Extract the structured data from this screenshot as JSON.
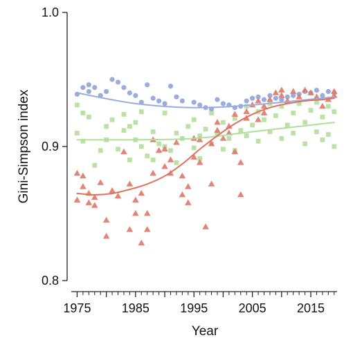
{
  "chart_data": {
    "type": "scatter",
    "title": "",
    "xlabel": "Year",
    "ylabel": "Gini-Simpson index",
    "xlim": [
      1974,
      2019.5
    ],
    "ylim": [
      0.8,
      1.0
    ],
    "x_ticks": [
      1975,
      1985,
      1995,
      2005,
      2015
    ],
    "x_tick_labels": [
      "1975",
      "1985",
      "1995",
      "2005",
      "2015"
    ],
    "y_ticks": [
      0.8,
      0.9,
      1.0
    ],
    "y_tick_labels": [
      "0.8",
      "0.9",
      "1.0"
    ],
    "grid": false,
    "legend": "none",
    "series": [
      {
        "marker": "circle",
        "color": "#8fa3dc",
        "trend_color": "#9aacdf",
        "points": [
          [
            1975,
            0.939
          ],
          [
            1976,
            0.944
          ],
          [
            1977,
            0.941
          ],
          [
            1977,
            0.946
          ],
          [
            1978,
            0.944
          ],
          [
            1979,
            0.938
          ],
          [
            1980,
            0.941
          ],
          [
            1981,
            0.95
          ],
          [
            1982,
            0.948
          ],
          [
            1983,
            0.944
          ],
          [
            1984,
            0.94
          ],
          [
            1985,
            0.938
          ],
          [
            1986,
            0.933
          ],
          [
            1987,
            0.946
          ],
          [
            1988,
            0.936
          ],
          [
            1989,
            0.934
          ],
          [
            1990,
            0.932
          ],
          [
            1991,
            0.945
          ],
          [
            1992,
            0.937
          ],
          [
            1993,
            0.934
          ],
          [
            1995,
            0.933
          ],
          [
            1996,
            0.931
          ],
          [
            1997,
            0.929
          ],
          [
            1998,
            0.928
          ],
          [
            1999,
            0.935
          ],
          [
            2000,
            0.932
          ],
          [
            2001,
            0.931
          ],
          [
            2002,
            0.929
          ],
          [
            2003,
            0.93
          ],
          [
            2004,
            0.934
          ],
          [
            2005,
            0.936
          ],
          [
            2006,
            0.937
          ],
          [
            2007,
            0.935
          ],
          [
            2008,
            0.938
          ],
          [
            2009,
            0.936
          ],
          [
            2010,
            0.935
          ],
          [
            2011,
            0.937
          ],
          [
            2012,
            0.938
          ],
          [
            2013,
            0.939
          ],
          [
            2014,
            0.941
          ],
          [
            2015,
            0.94
          ],
          [
            2016,
            0.942
          ],
          [
            2017,
            0.938
          ],
          [
            2018,
            0.941
          ],
          [
            2019,
            0.94
          ]
        ],
        "trend": [
          [
            1975,
            0.94
          ],
          [
            1985,
            0.932
          ],
          [
            1995,
            0.929
          ],
          [
            2005,
            0.931
          ],
          [
            2019,
            0.937
          ]
        ]
      },
      {
        "marker": "square",
        "color": "#b7e0a0",
        "trend_color": "#aee09a",
        "points": [
          [
            1975,
            0.931
          ],
          [
            1975,
            0.91
          ],
          [
            1976,
            0.925
          ],
          [
            1976,
            0.904
          ],
          [
            1977,
            0.922
          ],
          [
            1978,
            0.886
          ],
          [
            1979,
            0.897
          ],
          [
            1980,
            0.905
          ],
          [
            1980,
            0.915
          ],
          [
            1981,
            0.92
          ],
          [
            1982,
            0.898
          ],
          [
            1983,
            0.912
          ],
          [
            1983,
            0.924
          ],
          [
            1984,
            0.915
          ],
          [
            1984,
            0.89
          ],
          [
            1985,
            0.905
          ],
          [
            1985,
            0.918
          ],
          [
            1986,
            0.9
          ],
          [
            1986,
            0.926
          ],
          [
            1987,
            0.893
          ],
          [
            1988,
            0.89
          ],
          [
            1988,
            0.911
          ],
          [
            1989,
            0.902
          ],
          [
            1990,
            0.9
          ],
          [
            1990,
            0.925
          ],
          [
            1991,
            0.897
          ],
          [
            1992,
            0.91
          ],
          [
            1992,
            0.888
          ],
          [
            1993,
            0.906
          ],
          [
            1994,
            0.915
          ],
          [
            1995,
            0.899
          ],
          [
            1995,
            0.92
          ],
          [
            1996,
            0.908
          ],
          [
            1996,
            0.891
          ],
          [
            1997,
            0.913
          ],
          [
            1998,
            0.902
          ],
          [
            1998,
            0.925
          ],
          [
            1999,
            0.91
          ],
          [
            2000,
            0.898
          ],
          [
            2000,
            0.918
          ],
          [
            2001,
            0.906
          ],
          [
            2002,
            0.921
          ],
          [
            2002,
            0.897
          ],
          [
            2003,
            0.912
          ],
          [
            2004,
            0.908
          ],
          [
            2004,
            0.93
          ],
          [
            2005,
            0.916
          ],
          [
            2006,
            0.926
          ],
          [
            2006,
            0.904
          ],
          [
            2007,
            0.92
          ],
          [
            2008,
            0.911
          ],
          [
            2008,
            0.932
          ],
          [
            2009,
            0.923
          ],
          [
            2010,
            0.906
          ],
          [
            2010,
            0.93
          ],
          [
            2011,
            0.916
          ],
          [
            2012,
            0.925
          ],
          [
            2012,
            0.91
          ],
          [
            2013,
            0.932
          ],
          [
            2014,
            0.918
          ],
          [
            2014,
            0.902
          ],
          [
            2015,
            0.927
          ],
          [
            2016,
            0.911
          ],
          [
            2016,
            0.933
          ],
          [
            2017,
            0.905
          ],
          [
            2017,
            0.922
          ],
          [
            2018,
            0.93
          ],
          [
            2018,
            0.909
          ],
          [
            2019,
            0.926
          ],
          [
            2019,
            0.9
          ]
        ],
        "trend": [
          [
            1975,
            0.905
          ],
          [
            1985,
            0.905
          ],
          [
            1995,
            0.906
          ],
          [
            2005,
            0.911
          ],
          [
            2019,
            0.918
          ]
        ]
      },
      {
        "marker": "triangle",
        "color": "#e07a6a",
        "trend_color": "#e2705d",
        "points": [
          [
            1975,
            0.88
          ],
          [
            1975,
            0.86
          ],
          [
            1976,
            0.878
          ],
          [
            1976,
            0.87
          ],
          [
            1977,
            0.858
          ],
          [
            1977,
            0.865
          ],
          [
            1978,
            0.856
          ],
          [
            1978,
            0.862
          ],
          [
            1979,
            0.873
          ],
          [
            1980,
            0.833
          ],
          [
            1980,
            0.845
          ],
          [
            1981,
            0.867
          ],
          [
            1982,
            0.863
          ],
          [
            1983,
            0.896
          ],
          [
            1984,
            0.838
          ],
          [
            1984,
            0.872
          ],
          [
            1985,
            0.86
          ],
          [
            1985,
            0.85
          ],
          [
            1986,
            0.828
          ],
          [
            1986,
            0.865
          ],
          [
            1987,
            0.838
          ],
          [
            1987,
            0.85
          ],
          [
            1988,
            0.905
          ],
          [
            1988,
            0.88
          ],
          [
            1989,
            0.897
          ],
          [
            1990,
            0.898
          ],
          [
            1990,
            0.885
          ],
          [
            1991,
            0.89
          ],
          [
            1991,
            0.88
          ],
          [
            1992,
            0.903
          ],
          [
            1993,
            0.864
          ],
          [
            1993,
            0.878
          ],
          [
            1994,
            0.87
          ],
          [
            1994,
            0.858
          ],
          [
            1995,
            0.906
          ],
          [
            1995,
            0.892
          ],
          [
            1996,
            0.888
          ],
          [
            1996,
            0.905
          ],
          [
            1997,
            0.84
          ],
          [
            1998,
            0.872
          ],
          [
            1998,
            0.902
          ],
          [
            1999,
            0.912
          ],
          [
            1999,
            0.918
          ],
          [
            2000,
            0.906
          ],
          [
            2001,
            0.915
          ],
          [
            2001,
            0.91
          ],
          [
            2002,
            0.924
          ],
          [
            2002,
            0.896
          ],
          [
            2003,
            0.888
          ],
          [
            2003,
            0.864
          ],
          [
            2004,
            0.921
          ],
          [
            2004,
            0.926
          ],
          [
            2005,
            0.931
          ],
          [
            2006,
            0.92
          ],
          [
            2006,
            0.934
          ],
          [
            2007,
            0.93
          ],
          [
            2007,
            0.925
          ],
          [
            2008,
            0.935
          ],
          [
            2009,
            0.94
          ],
          [
            2010,
            0.942
          ],
          [
            2010,
            0.938
          ],
          [
            2011,
            0.934
          ],
          [
            2012,
            0.941
          ],
          [
            2013,
            0.937
          ],
          [
            2014,
            0.942
          ],
          [
            2015,
            0.94
          ],
          [
            2016,
            0.937
          ],
          [
            2017,
            0.93
          ],
          [
            2018,
            0.935
          ],
          [
            2019,
            0.941
          ],
          [
            2019,
            0.938
          ]
        ],
        "trend": [
          [
            1975,
            0.865
          ],
          [
            1978,
            0.864
          ],
          [
            1981,
            0.865
          ],
          [
            1984,
            0.868
          ],
          [
            1987,
            0.872
          ],
          [
            1990,
            0.878
          ],
          [
            1993,
            0.887
          ],
          [
            1996,
            0.898
          ],
          [
            1999,
            0.908
          ],
          [
            2002,
            0.917
          ],
          [
            2005,
            0.924
          ],
          [
            2008,
            0.929
          ],
          [
            2011,
            0.932
          ],
          [
            2014,
            0.934
          ],
          [
            2017,
            0.935
          ],
          [
            2019,
            0.936
          ]
        ]
      }
    ]
  }
}
